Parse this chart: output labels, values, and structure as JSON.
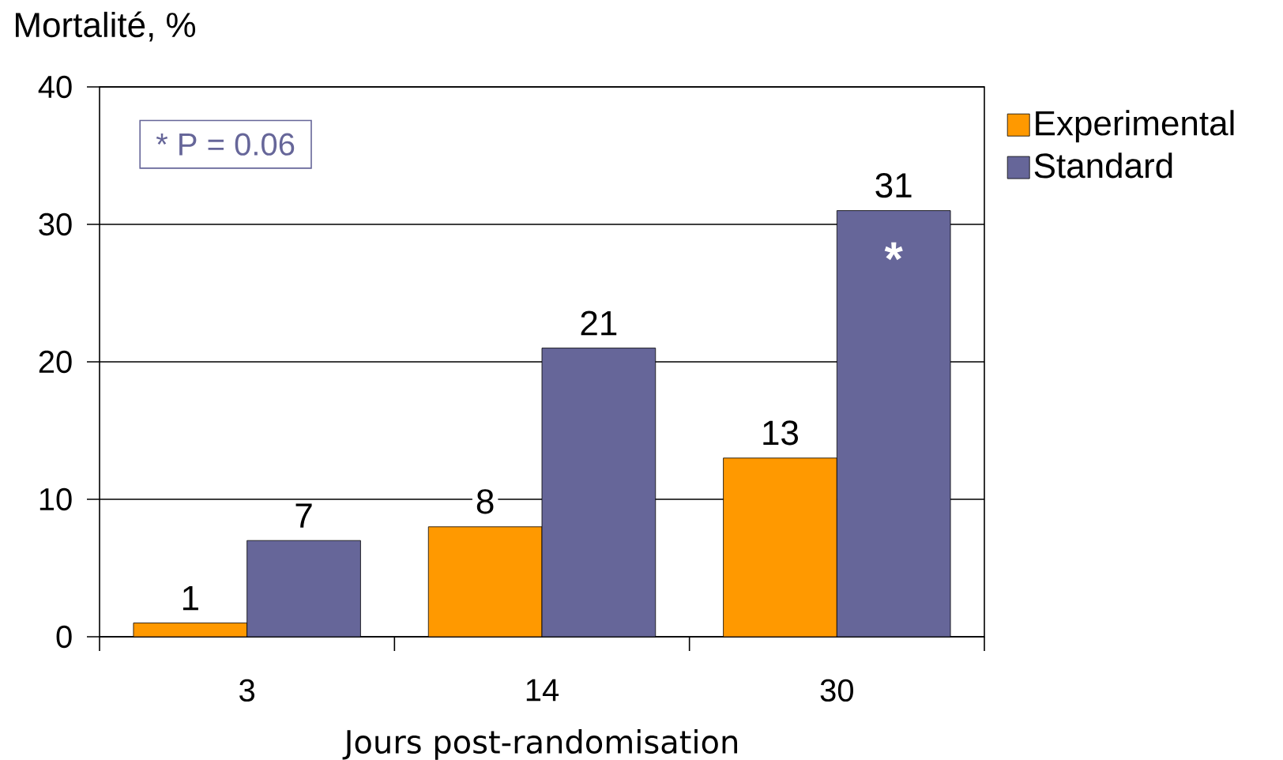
{
  "chart_data": {
    "type": "bar",
    "ylabel": "Mortalité, %",
    "xlabel": "Jours post-randomisation",
    "categories": [
      "3",
      "14",
      "30"
    ],
    "series": [
      {
        "name": "Experimental",
        "color": "#ff9900",
        "values": [
          1,
          8,
          13
        ]
      },
      {
        "name": "Standard",
        "color": "#666699",
        "values": [
          7,
          21,
          31
        ]
      }
    ],
    "ylim": [
      0,
      40
    ],
    "yticks": [
      0,
      10,
      20,
      30,
      40
    ],
    "grid": "y",
    "legend": "right",
    "data_labels": true,
    "annotations": [
      "* P = 0.06",
      {
        "text": "*",
        "x": "30",
        "y": 27.5
      }
    ]
  }
}
